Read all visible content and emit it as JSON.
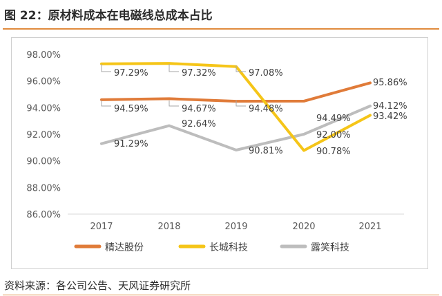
{
  "header": {
    "title": "图 22：原材料成本在电磁线总成本占比"
  },
  "footer": {
    "source": "资料来源：各公司公告、天风证券研究所"
  },
  "chart_data": {
    "type": "line",
    "title": "",
    "xlabel": "",
    "ylabel": "",
    "x": [
      "2017",
      "2018",
      "2019",
      "2020",
      "2021"
    ],
    "ylim": [
      86,
      98
    ],
    "yticks": [
      86,
      88,
      90,
      92,
      94,
      96,
      98
    ],
    "ytick_labels": [
      "86.00%",
      "88.00%",
      "90.00%",
      "92.00%",
      "94.00%",
      "96.00%",
      "98.00%"
    ],
    "grid": false,
    "legend": "bottom",
    "series": [
      {
        "name": "精达股份",
        "color": "#e07b39",
        "values": [
          94.59,
          94.67,
          94.48,
          94.49,
          95.86
        ],
        "labels": [
          "94.59%",
          "94.67%",
          "94.48%",
          "94.49%",
          "95.86%"
        ]
      },
      {
        "name": "长城科技",
        "color": "#f5c518",
        "values": [
          97.29,
          97.32,
          97.08,
          90.78,
          93.42
        ],
        "labels": [
          "97.29%",
          "97.32%",
          "97.08%",
          "90.78%",
          "93.42%"
        ]
      },
      {
        "name": "露笑科技",
        "color": "#bdbdbd",
        "values": [
          91.29,
          92.64,
          90.81,
          92.0,
          94.12
        ],
        "labels": [
          "91.29%",
          "92.64%",
          "90.81%",
          "92.00%",
          "94.12%"
        ]
      }
    ]
  }
}
